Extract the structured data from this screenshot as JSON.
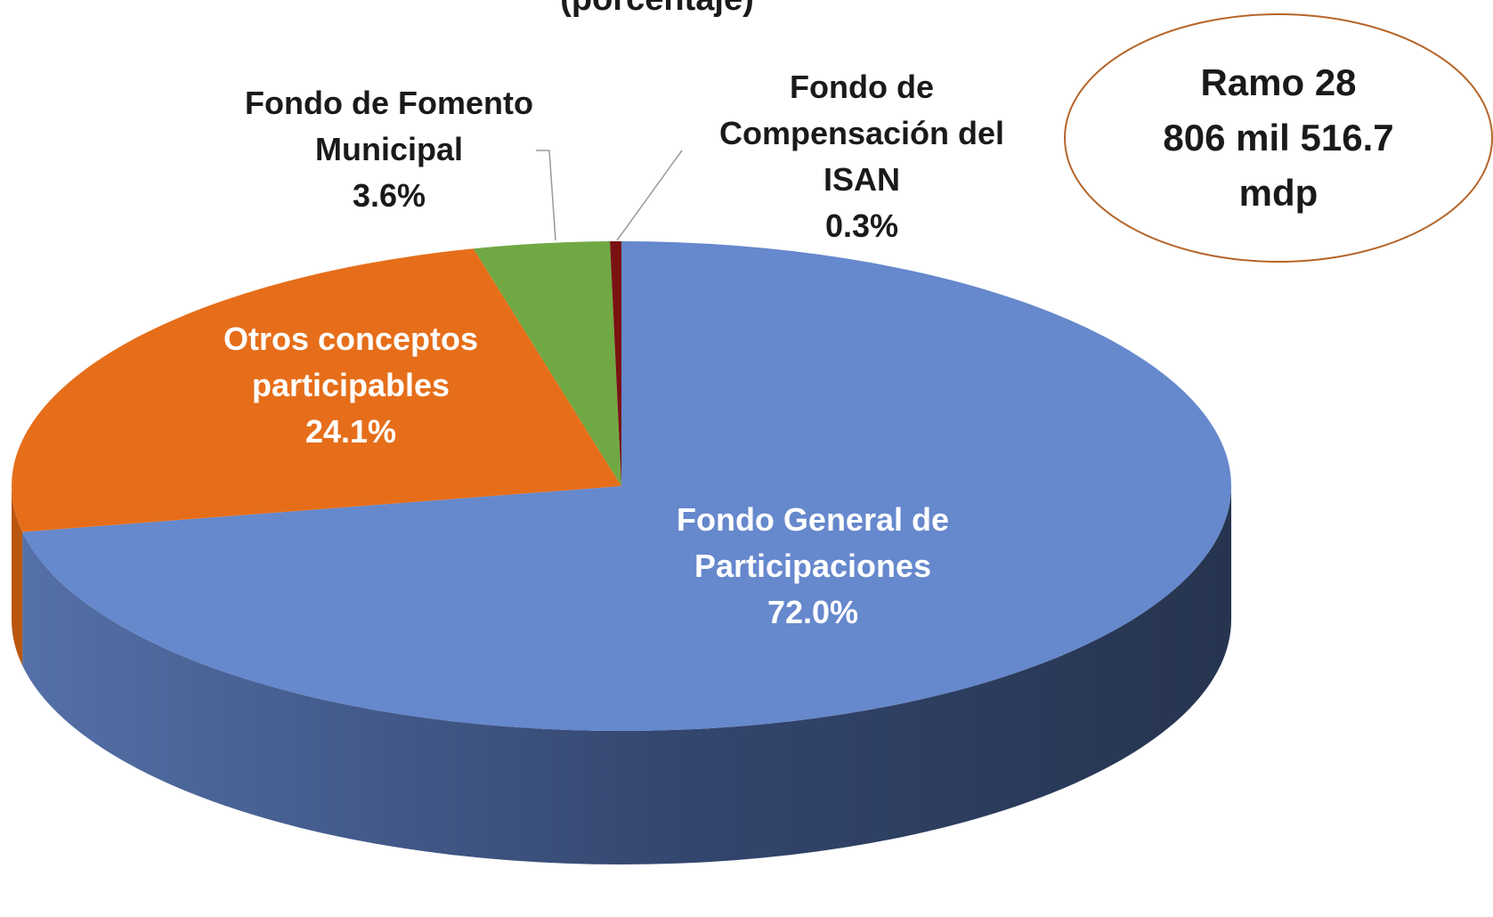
{
  "chart_data": {
    "type": "pie",
    "subtitle": "(porcentaje)",
    "categories": [
      "Fondo General de Participaciones",
      "Otros conceptos participables",
      "Fondo de Fomento Municipal",
      "Fondo de Compensación del ISAN"
    ],
    "values": [
      72.0,
      24.1,
      3.6,
      0.3
    ],
    "value_labels": [
      "72.0%",
      "24.1%",
      "3.6%",
      "0.3%"
    ],
    "colors": [
      "#6688cc",
      "#e66e1a",
      "#70a844",
      "#7a1212"
    ],
    "annotation": [
      "Ramo 28",
      "806 mil 516.7",
      "mdp"
    ]
  }
}
